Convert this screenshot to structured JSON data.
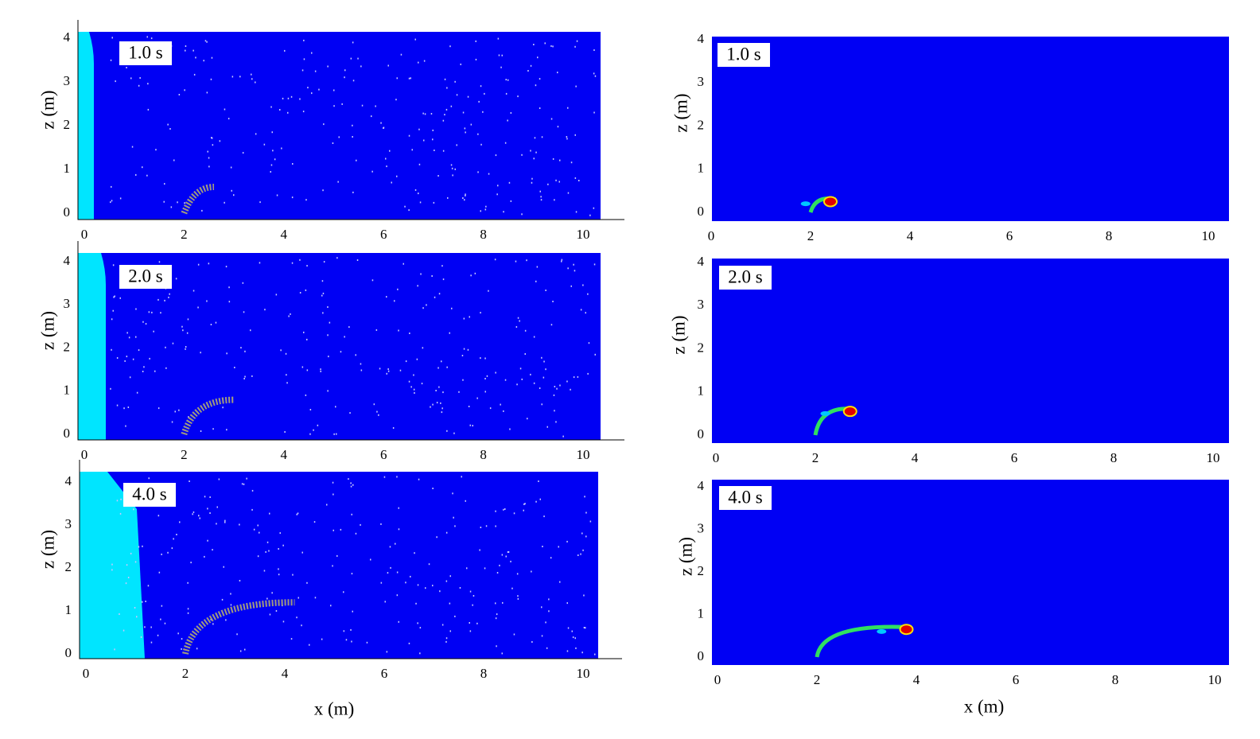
{
  "panels": [
    {
      "time": "1.0 s",
      "ylabel": "z (m)",
      "xticks": [
        "0",
        "2",
        "4",
        "6",
        "8",
        "10"
      ],
      "yticks": [
        "0",
        "1",
        "2",
        "3",
        "4"
      ]
    },
    {
      "time": "2.0 s",
      "ylabel": "z (m)",
      "xticks": [
        "0",
        "2",
        "4",
        "6",
        "8",
        "10"
      ],
      "yticks": [
        "0",
        "1",
        "2",
        "3",
        "4"
      ]
    },
    {
      "time": "4.0 s",
      "ylabel": "z (m)",
      "xticks": [
        "0",
        "2",
        "4",
        "6",
        "8",
        "10"
      ],
      "yticks": [
        "0",
        "1",
        "2",
        "3",
        "4"
      ]
    },
    {
      "time": "1.0 s",
      "ylabel": "z (m)",
      "xticks": [
        "0",
        "2",
        "4",
        "6",
        "8",
        "10"
      ],
      "yticks": [
        "0",
        "1",
        "2",
        "3",
        "4"
      ]
    },
    {
      "time": "2.0 s",
      "ylabel": "z (m)",
      "xticks": [
        "0",
        "2",
        "4",
        "6",
        "8",
        "10"
      ],
      "yticks": [
        "0",
        "1",
        "2",
        "3",
        "4"
      ]
    },
    {
      "time": "4.0 s",
      "ylabel": "z (m)",
      "xticks": [
        "0",
        "2",
        "4",
        "6",
        "8",
        "10"
      ],
      "yticks": [
        "0",
        "1",
        "2",
        "3",
        "4"
      ]
    }
  ],
  "xlabels": [
    "x (m)",
    "x (m)"
  ]
}
